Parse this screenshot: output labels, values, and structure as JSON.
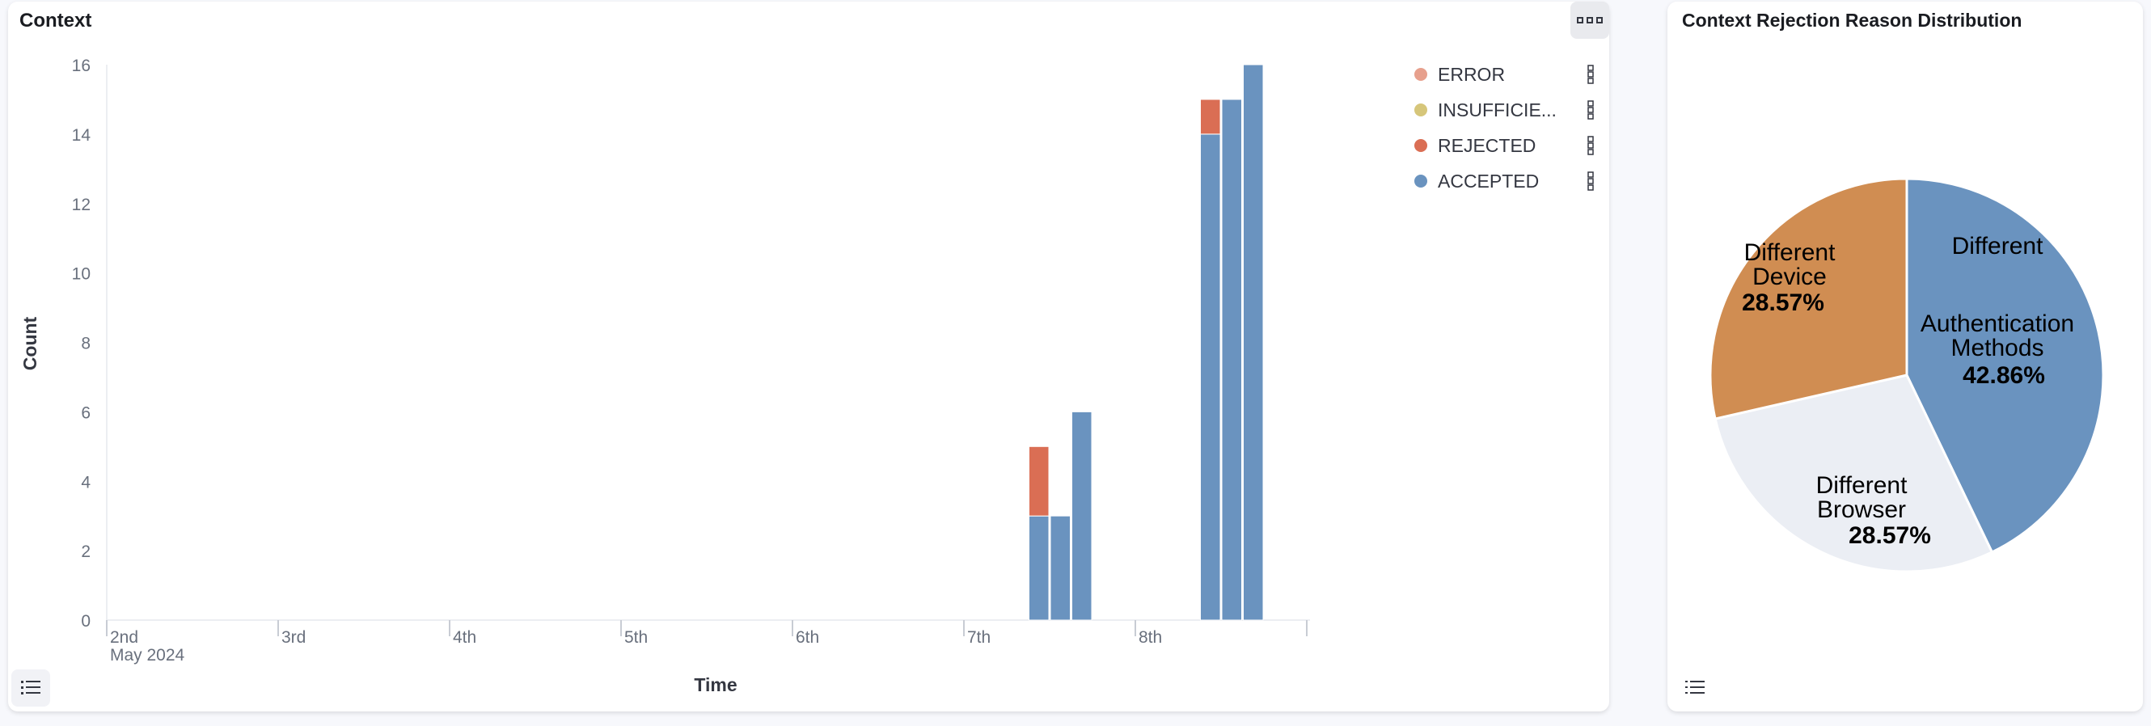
{
  "left_panel": {
    "title": "Context",
    "options_icon": "ellipsis-boxes-icon",
    "legend_toggle_icon": "list-icon"
  },
  "right_panel": {
    "title": "Context Rejection Reason Distribution",
    "legend_toggle_icon": "list-icon"
  },
  "chart_data": [
    {
      "type": "bar",
      "stacked": true,
      "title": "Context",
      "xlabel": "Time",
      "ylabel": "Count",
      "ylim": [
        0,
        16
      ],
      "yticks": [
        0,
        2,
        4,
        6,
        8,
        10,
        12,
        14,
        16
      ],
      "xticks": [
        "2nd",
        "3rd",
        "4th",
        "5th",
        "6th",
        "7th",
        "8th"
      ],
      "xtick_sublabel": "May 2024",
      "x": [
        "2024-05-07 09:00",
        "2024-05-07 12:00",
        "2024-05-07 15:00",
        "2024-05-08 09:00",
        "2024-05-08 12:00",
        "2024-05-08 15:00"
      ],
      "legend_position": "right",
      "series": [
        {
          "name": "ERROR",
          "color": "#e7a08d",
          "values": [
            0,
            0,
            0,
            0,
            0,
            0
          ]
        },
        {
          "name": "INSUFFICIE...",
          "color": "#d6c67a",
          "values": [
            0,
            0,
            0,
            0,
            0,
            0
          ]
        },
        {
          "name": "REJECTED",
          "color": "#da6e54",
          "values": [
            2,
            0,
            0,
            1,
            0,
            0
          ]
        },
        {
          "name": "ACCEPTED",
          "color": "#6a93bf",
          "values": [
            3,
            3,
            6,
            14,
            15,
            16
          ]
        }
      ]
    },
    {
      "type": "pie",
      "title": "Context Rejection Reason Distribution",
      "slices": [
        {
          "label": [
            "Different",
            "Authentication",
            "Methods"
          ],
          "percent_label": "42.86%",
          "value": 42.86,
          "color": "#6a93bf"
        },
        {
          "label": [
            "Different",
            "Browser"
          ],
          "percent_label": "28.57%",
          "value": 28.57,
          "color": "#ebeef4"
        },
        {
          "label": [
            "Different",
            "Device"
          ],
          "percent_label": "28.57%",
          "value": 28.57,
          "color": "#d08d52"
        }
      ]
    }
  ]
}
